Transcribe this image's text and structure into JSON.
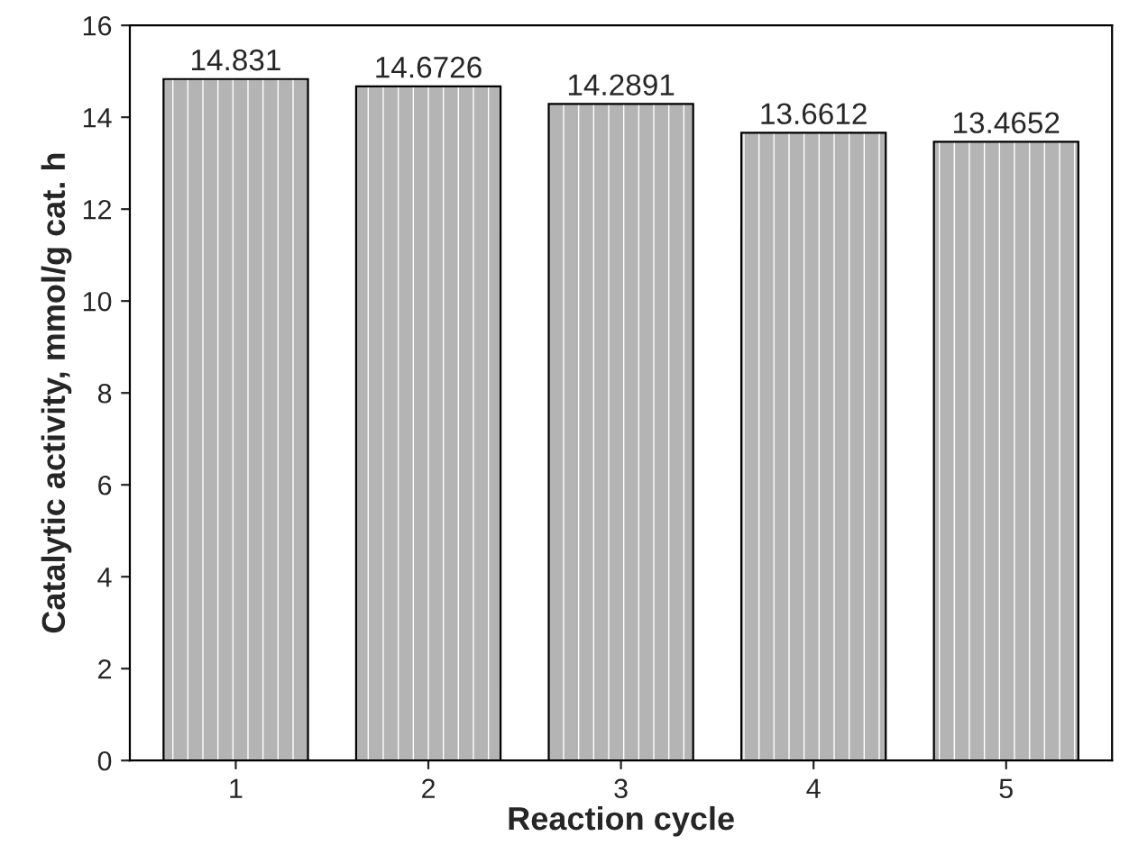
{
  "chart_data": {
    "type": "bar",
    "xlabel": "Reaction cycle",
    "ylabel": "Catalytic activity, mmol/g cat. h",
    "categories": [
      "1",
      "2",
      "3",
      "4",
      "5"
    ],
    "values": [
      14.831,
      14.6726,
      14.2891,
      13.6612,
      13.4652
    ],
    "color": "#b4b4b4",
    "ylim": [
      0,
      16
    ],
    "yticks": [
      0,
      2,
      4,
      6,
      8,
      10,
      12,
      14,
      16
    ],
    "data_labels": true,
    "grid": false
  }
}
